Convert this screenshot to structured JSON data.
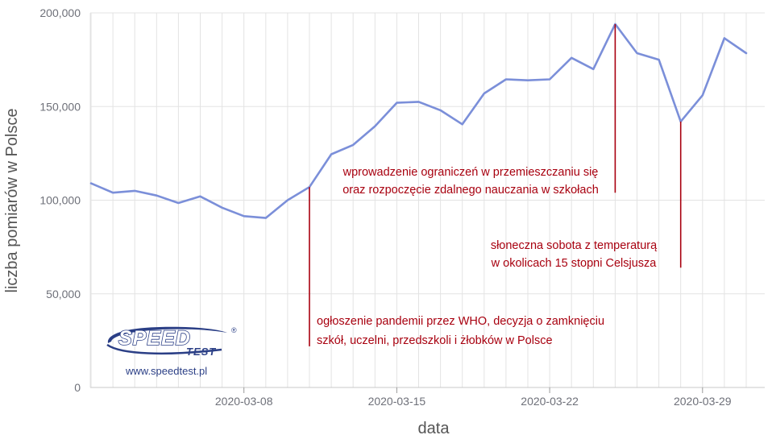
{
  "chart_data": {
    "type": "line",
    "xlabel": "data",
    "ylabel": "liczba pomiarów w Polsce",
    "ylim": [
      0,
      200000
    ],
    "y_ticks": [
      0,
      50000,
      100000,
      150000,
      200000
    ],
    "y_tick_labels": [
      "0",
      "50,000",
      "100,000",
      "150,000",
      "200,000"
    ],
    "x_tick_labels": [
      "2020-03-08",
      "2020-03-15",
      "2020-03-22",
      "2020-03-29"
    ],
    "x_tick_dates": [
      "2020-03-08",
      "2020-03-15",
      "2020-03-22",
      "2020-03-29"
    ],
    "x_range": [
      "2020-03-01",
      "2020-03-31"
    ],
    "grid": true,
    "line_color": "#7b8fd9",
    "annotation_color": "#a8000f",
    "series": [
      {
        "x": [
          "2020-03-01",
          "2020-03-02",
          "2020-03-03",
          "2020-03-04",
          "2020-03-05",
          "2020-03-06",
          "2020-03-07",
          "2020-03-08",
          "2020-03-09",
          "2020-03-10",
          "2020-03-11",
          "2020-03-12",
          "2020-03-13",
          "2020-03-14",
          "2020-03-15",
          "2020-03-16",
          "2020-03-17",
          "2020-03-18",
          "2020-03-19",
          "2020-03-20",
          "2020-03-21",
          "2020-03-22",
          "2020-03-23",
          "2020-03-24",
          "2020-03-25",
          "2020-03-26",
          "2020-03-27",
          "2020-03-28",
          "2020-03-29",
          "2020-03-30",
          "2020-03-31"
        ],
        "values": [
          109000,
          104000,
          105000,
          102500,
          98500,
          102000,
          96000,
          91500,
          90500,
          100000,
          107000,
          124500,
          129500,
          139500,
          152000,
          152500,
          148000,
          140500,
          157000,
          164500,
          164000,
          164500,
          176000,
          170000,
          194000,
          178500,
          175000,
          142000,
          156000,
          186500,
          178500
        ]
      }
    ],
    "annotations": [
      {
        "date": "2020-03-11",
        "y_from": 22000,
        "y_to": 107000,
        "text_lines": [
          "ogłoszenie pandemii przez WHO, decyzja o zamknięciu",
          "szkół, uczelni, przedszkoli i żłobków w Polsce"
        ]
      },
      {
        "date": "2020-03-25",
        "y_from": 104000,
        "y_to": 194000,
        "text_lines": [
          "wprowadzenie ograniczeń w przemieszczaniu się",
          "oraz rozpoczęcie zdalnego nauczania w szkołach"
        ]
      },
      {
        "date": "2020-03-28",
        "y_from": 64000,
        "y_to": 142000,
        "text_lines": [
          "słoneczna sobota z temperaturą",
          "w okolicach 15 stopni Celsjusza"
        ]
      }
    ]
  },
  "logo": {
    "brand_top": "SPEED",
    "brand_bottom": "TEST",
    "registered": "®",
    "url": "www.speedtest.pl"
  }
}
